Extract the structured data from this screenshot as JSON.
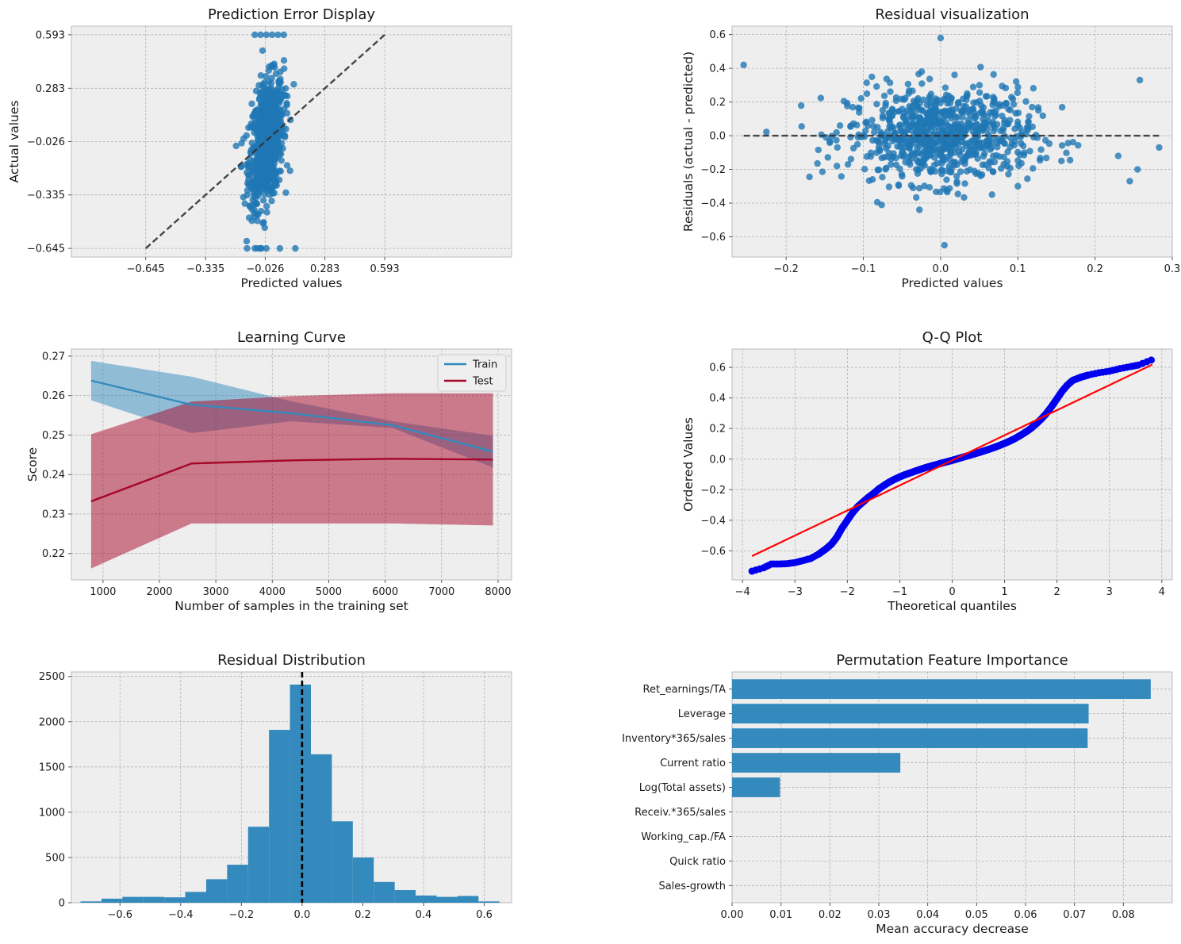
{
  "chart_data": [
    {
      "id": "pred-error",
      "type": "scatter",
      "title": "Prediction Error Display",
      "xlabel": "Predicted values",
      "ylabel": "Actual values",
      "xlim": [
        -1.03,
        1.25
      ],
      "ylim": [
        -0.695,
        0.643
      ],
      "xticks": [
        -0.645,
        -0.335,
        -0.026,
        0.283,
        0.593
      ],
      "xtick_labels": [
        "−0.645",
        "−0.335",
        "−0.026",
        "0.283",
        "0.593"
      ],
      "yticks": [
        -0.645,
        -0.335,
        -0.026,
        0.283,
        0.593
      ],
      "ytick_labels": [
        "−0.645",
        "−0.335",
        "−0.026",
        "0.283",
        "0.593"
      ],
      "reference_line": {
        "from": [
          -0.645,
          -0.645
        ],
        "to": [
          0.593,
          0.593
        ],
        "style": "dashed"
      },
      "points_summary": "dense cluster of ~800 points, predicted values between -0.2 and 0.25, actual values spanning -0.645 to 0.593",
      "color": "#1f77b4"
    },
    {
      "id": "residual-vis",
      "type": "scatter",
      "title": "Residual visualization",
      "xlabel": "Predicted values",
      "ylabel": "Residuals (actual - predicted)",
      "xlim": [
        -0.27,
        0.3
      ],
      "ylim": [
        -0.72,
        0.65
      ],
      "xticks": [
        -0.2,
        -0.1,
        0.0,
        0.1,
        0.2,
        0.3
      ],
      "xtick_labels": [
        "−0.2",
        "−0.1",
        "0.0",
        "0.1",
        "0.2",
        "0.3"
      ],
      "yticks": [
        -0.6,
        -0.4,
        -0.2,
        0.0,
        0.2,
        0.4,
        0.6
      ],
      "ytick_labels": [
        "−0.6",
        "−0.4",
        "−0.2",
        "0.0",
        "0.2",
        "0.4",
        "0.6"
      ],
      "reference_line": {
        "y": 0,
        "from_x": -0.255,
        "to_x": 0.283,
        "style": "dashed"
      },
      "points_summary": "~800 residual points centered on 0, predicted between -0.255 and 0.283",
      "color": "#1f77b4"
    },
    {
      "id": "learning-curve",
      "type": "line",
      "title": "Learning Curve",
      "xlabel": "Number of samples in the training set",
      "ylabel": "Score",
      "xlim": [
        440,
        8240
      ],
      "ylim": [
        0.2133,
        0.2718
      ],
      "xticks": [
        1000,
        2000,
        3000,
        4000,
        5000,
        6000,
        7000,
        8000
      ],
      "xtick_labels": [
        "1000",
        "2000",
        "3000",
        "4000",
        "5000",
        "6000",
        "7000",
        "8000"
      ],
      "yticks": [
        0.22,
        0.23,
        0.24,
        0.25,
        0.26,
        0.27
      ],
      "ytick_labels": [
        "0.22",
        "0.23",
        "0.24",
        "0.25",
        "0.26",
        "0.27"
      ],
      "x": [
        790,
        2570,
        4350,
        6130,
        7910
      ],
      "series": [
        {
          "name": "Train",
          "color": "#348abd",
          "values": [
            0.2638,
            0.2577,
            0.2555,
            0.2525,
            0.2458
          ],
          "lower": [
            0.2588,
            0.2505,
            0.2535,
            0.2518,
            0.2418
          ],
          "upper": [
            0.2688,
            0.2648,
            0.2585,
            0.2535,
            0.2498
          ]
        },
        {
          "name": "Test",
          "color": "#a60628",
          "values": [
            0.2332,
            0.2428,
            0.2436,
            0.244,
            0.2438
          ],
          "lower": [
            0.2162,
            0.2276,
            0.2276,
            0.2276,
            0.2271
          ],
          "upper": [
            0.2502,
            0.2585,
            0.2599,
            0.2606,
            0.2606
          ]
        }
      ],
      "legend": "upper right"
    },
    {
      "id": "qq-plot",
      "type": "scatter",
      "title": "Q-Q Plot",
      "xlabel": "Theoretical quantiles",
      "ylabel": "Ordered Values",
      "xlim": [
        -4.2,
        4.2
      ],
      "ylim": [
        -0.79,
        0.72
      ],
      "xticks": [
        -4,
        -3,
        -2,
        -1,
        0,
        1,
        2,
        3,
        4
      ],
      "xtick_labels": [
        "−4",
        "−3",
        "−2",
        "−1",
        "0",
        "1",
        "2",
        "3",
        "4"
      ],
      "yticks": [
        -0.6,
        -0.4,
        -0.2,
        0.0,
        0.2,
        0.4,
        0.6
      ],
      "ytick_labels": [
        "−0.6",
        "−0.4",
        "−0.2",
        "0.0",
        "0.2",
        "0.4",
        "0.6"
      ],
      "quantile_points": [
        [
          -3.82,
          -0.733
        ],
        [
          -3.6,
          -0.711
        ],
        [
          -3.45,
          -0.686
        ],
        [
          -3.3,
          -0.686
        ],
        [
          -3.15,
          -0.684
        ],
        [
          -3.0,
          -0.677
        ],
        [
          -2.85,
          -0.664
        ],
        [
          -2.7,
          -0.65
        ],
        [
          -2.55,
          -0.622
        ],
        [
          -2.4,
          -0.585
        ],
        [
          -2.3,
          -0.555
        ],
        [
          -2.2,
          -0.51
        ],
        [
          -2.1,
          -0.45
        ],
        [
          -2.0,
          -0.4
        ],
        [
          -1.9,
          -0.35
        ],
        [
          -1.8,
          -0.31
        ],
        [
          -1.7,
          -0.28
        ],
        [
          -1.6,
          -0.25
        ],
        [
          -1.5,
          -0.225
        ],
        [
          -1.4,
          -0.195
        ],
        [
          -1.3,
          -0.172
        ],
        [
          -1.2,
          -0.15
        ],
        [
          -1.1,
          -0.132
        ],
        [
          -1.0,
          -0.116
        ],
        [
          -0.9,
          -0.102
        ],
        [
          -0.8,
          -0.09
        ],
        [
          -0.7,
          -0.078
        ],
        [
          -0.6,
          -0.066
        ],
        [
          -0.5,
          -0.055
        ],
        [
          -0.4,
          -0.045
        ],
        [
          -0.3,
          -0.036
        ],
        [
          -0.2,
          -0.026
        ],
        [
          -0.1,
          -0.017
        ],
        [
          0.0,
          -0.008
        ],
        [
          0.1,
          0.002
        ],
        [
          0.2,
          0.012
        ],
        [
          0.3,
          0.022
        ],
        [
          0.4,
          0.032
        ],
        [
          0.5,
          0.042
        ],
        [
          0.6,
          0.053
        ],
        [
          0.7,
          0.064
        ],
        [
          0.8,
          0.076
        ],
        [
          0.9,
          0.089
        ],
        [
          1.0,
          0.103
        ],
        [
          1.1,
          0.118
        ],
        [
          1.2,
          0.135
        ],
        [
          1.3,
          0.155
        ],
        [
          1.4,
          0.176
        ],
        [
          1.5,
          0.2
        ],
        [
          1.6,
          0.23
        ],
        [
          1.7,
          0.262
        ],
        [
          1.8,
          0.3
        ],
        [
          1.9,
          0.345
        ],
        [
          2.0,
          0.395
        ],
        [
          2.1,
          0.445
        ],
        [
          2.2,
          0.485
        ],
        [
          2.3,
          0.515
        ],
        [
          2.45,
          0.535
        ],
        [
          2.6,
          0.55
        ],
        [
          2.8,
          0.565
        ],
        [
          3.0,
          0.575
        ],
        [
          3.2,
          0.592
        ],
        [
          3.4,
          0.605
        ],
        [
          3.55,
          0.615
        ],
        [
          3.8,
          0.648
        ]
      ],
      "fit_line": {
        "slope": 0.164,
        "intercept": -0.008,
        "x_range": [
          -3.82,
          3.82
        ]
      },
      "point_color": "#0000ee",
      "line_color": "#ff0000"
    },
    {
      "id": "residual-dist",
      "type": "bar",
      "title": "Residual Distribution",
      "xlabel": "",
      "ylabel": "",
      "xlim": [
        -0.76,
        0.69
      ],
      "ylim": [
        0,
        2550
      ],
      "xticks": [
        -0.6,
        -0.4,
        -0.2,
        0.0,
        0.2,
        0.4,
        0.6
      ],
      "xtick_labels": [
        "−0.6",
        "−0.4",
        "−0.2",
        "0.0",
        "0.2",
        "0.4",
        "0.6"
      ],
      "yticks": [
        0,
        500,
        1000,
        1500,
        2000,
        2500
      ],
      "ytick_labels": [
        "0",
        "500",
        "1000",
        "1500",
        "2000",
        "2500"
      ],
      "bin_edges": [
        -0.73,
        -0.661,
        -0.592,
        -0.523,
        -0.454,
        -0.385,
        -0.316,
        -0.247,
        -0.178,
        -0.109,
        -0.04,
        0.029,
        0.098,
        0.167,
        0.236,
        0.305,
        0.374,
        0.443,
        0.512,
        0.581,
        0.65
      ],
      "values": [
        15,
        45,
        65,
        65,
        60,
        120,
        260,
        420,
        840,
        1910,
        2410,
        1640,
        900,
        500,
        230,
        140,
        80,
        65,
        75,
        15
      ],
      "reference_line": {
        "x": 0.0,
        "style": "dashed"
      },
      "color": "#348abd"
    },
    {
      "id": "perm-importance",
      "type": "bar",
      "orientation": "horizontal",
      "title": "Permutation Feature Importance",
      "xlabel": "Mean accuracy decrease",
      "ylabel": "",
      "xlim": [
        0,
        0.09
      ],
      "xticks": [
        0.0,
        0.01,
        0.02,
        0.03,
        0.04,
        0.05,
        0.06,
        0.07,
        0.08
      ],
      "xtick_labels": [
        "0.00",
        "0.01",
        "0.02",
        "0.03",
        "0.04",
        "0.05",
        "0.06",
        "0.07",
        "0.08"
      ],
      "categories": [
        "Ret_earnings/TA",
        "Leverage",
        "Inventory*365/sales",
        "Current ratio",
        "Log(Total assets)",
        "Receiv.*365/sales",
        "Working_cap./FA",
        "Quick ratio",
        "Sales-growth"
      ],
      "values": [
        0.0856,
        0.0729,
        0.0727,
        0.0344,
        0.0098,
        0.0,
        0.0,
        0.0,
        0.0
      ],
      "color": "#348abd"
    }
  ]
}
